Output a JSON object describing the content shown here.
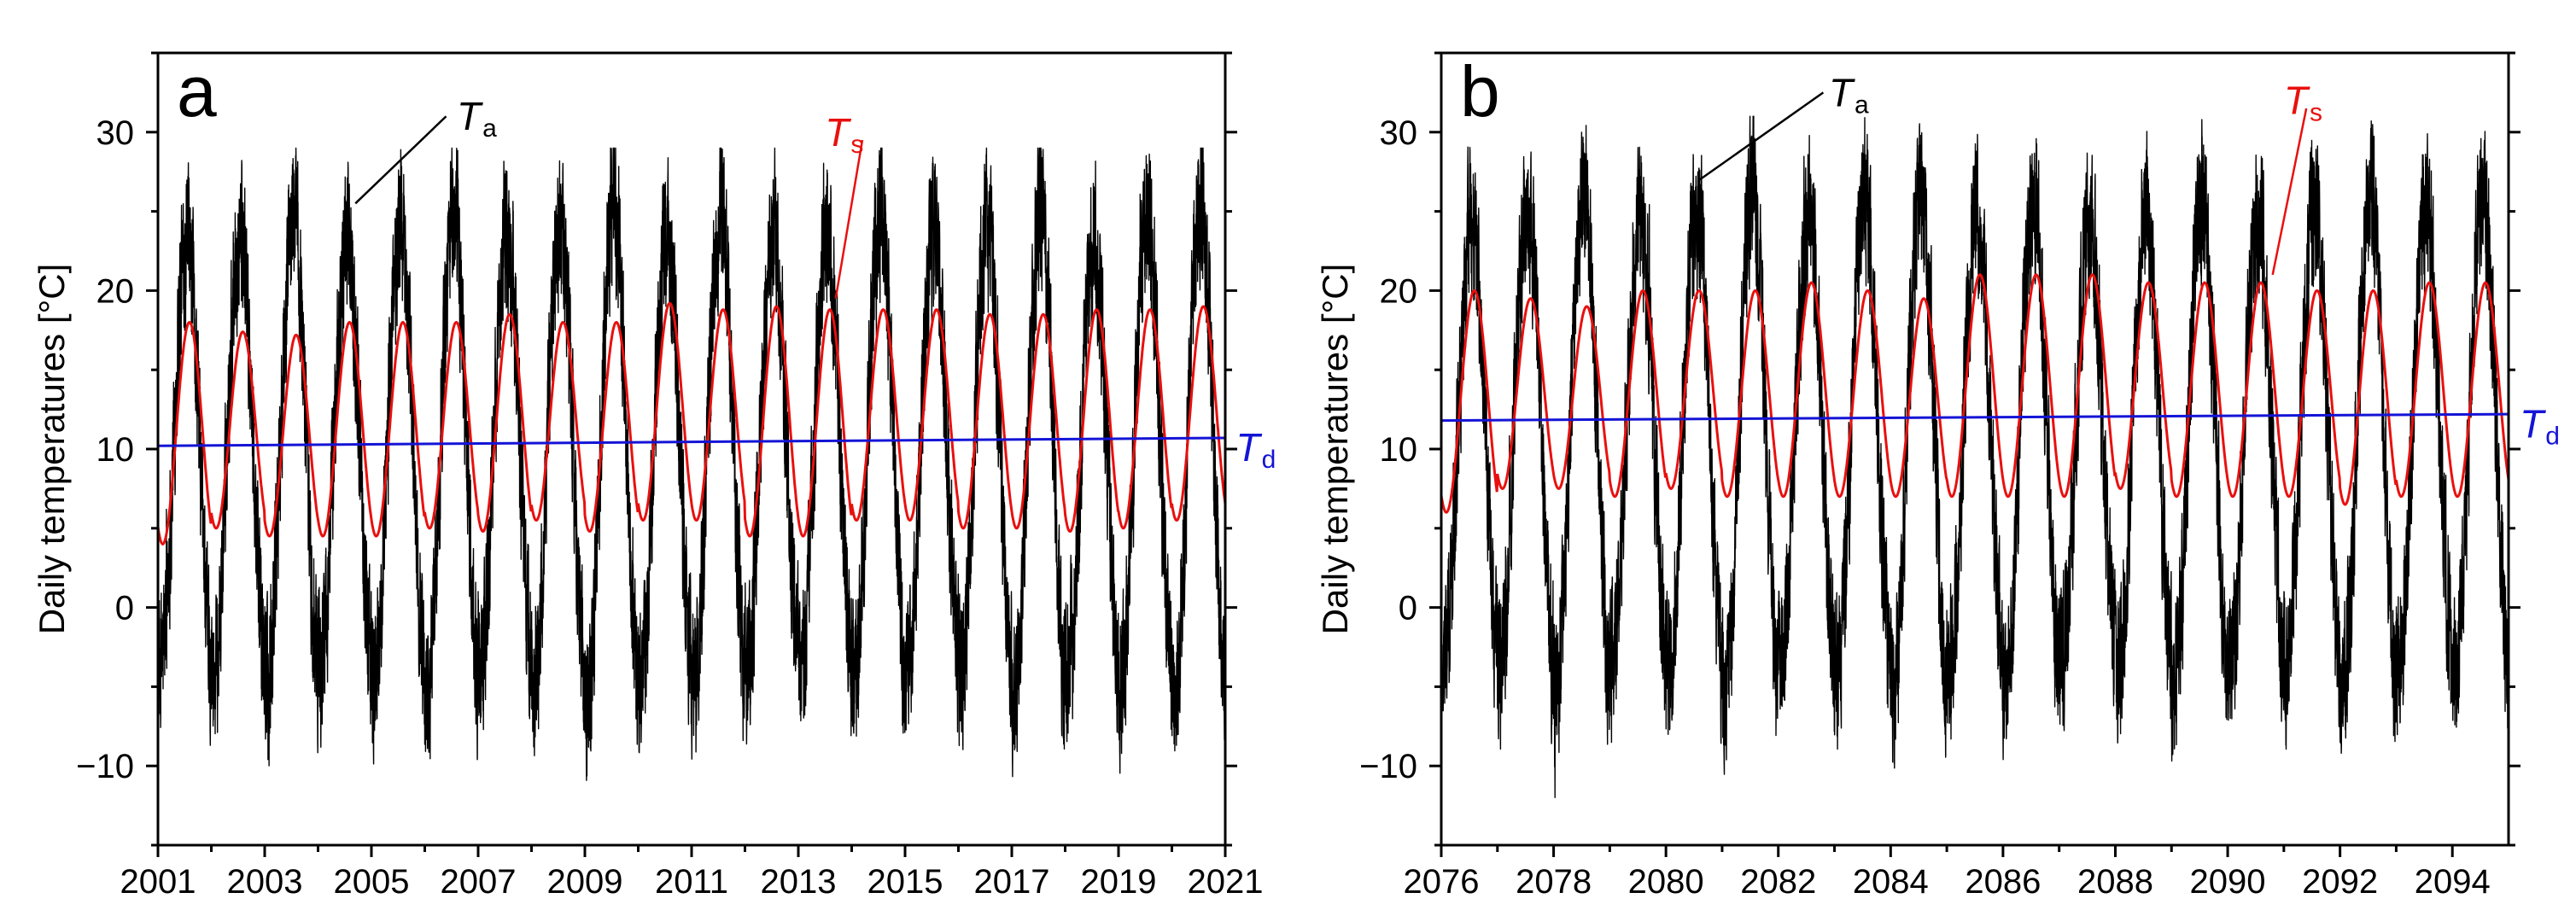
{
  "colors": {
    "Ta": "#000000",
    "Ts": "#e8100e",
    "Td": "#1414d6"
  },
  "chart_data": [
    {
      "type": "line",
      "panel_label": "a",
      "ylabel": "Daily temperatures [°C]",
      "xlim": [
        2001,
        2021
      ],
      "ylim": [
        -15,
        35
      ],
      "xticks": [
        "2001",
        "2003",
        "2005",
        "2007",
        "2009",
        "2011",
        "2013",
        "2015",
        "2017",
        "2019",
        "2021"
      ],
      "yticks": [
        "-10",
        "0",
        "10",
        "20",
        "30"
      ],
      "series": [
        {
          "name": "Ta",
          "kind": "daily air temperature (noisy seasonal)",
          "mean": 9.8,
          "amplitude": 14.5,
          "approx_max": 29,
          "approx_min": -11
        },
        {
          "name": "Ts",
          "kind": "seasonal sinusoid",
          "mean": 11.5,
          "amplitude": 6.8,
          "peaks": [
            18,
            17.4,
            17.2,
            18,
            18,
            18,
            18.5,
            18,
            18,
            19.2,
            18.8,
            19,
            18.8,
            18.8,
            18.8,
            18.5,
            18.5,
            18.8,
            18.8,
            19
          ],
          "troughs": [
            4,
            5,
            4.5,
            4.5,
            4.5,
            5,
            4.8,
            5.5,
            4.8,
            5.5,
            5.5,
            4.5,
            4.5,
            5.5,
            5.5,
            5,
            5,
            4.8,
            5,
            5.5
          ]
        },
        {
          "name": "Td",
          "kind": "nearly constant",
          "values": [
            10.2,
            10.7
          ]
        }
      ],
      "annotations": [
        {
          "main": "T",
          "sub": "a",
          "color": "Ta"
        },
        {
          "main": "T",
          "sub": "s",
          "color": "Ts"
        },
        {
          "main": "T",
          "sub": "d",
          "color": "Td"
        }
      ]
    },
    {
      "type": "line",
      "panel_label": "b",
      "ylabel": "Daily temperatures [°C]",
      "xlim": [
        2076,
        2095
      ],
      "ylim": [
        -15,
        35
      ],
      "xticks": [
        "2076",
        "2078",
        "2080",
        "2082",
        "2084",
        "2086",
        "2088",
        "2090",
        "2092",
        "2094"
      ],
      "yticks": [
        "-10",
        "0",
        "10",
        "20",
        "30"
      ],
      "series": [
        {
          "name": "Ta",
          "kind": "daily air temperature (noisy seasonal)",
          "mean": 10.5,
          "amplitude": 15,
          "approx_max": 31,
          "approx_min": -12
        },
        {
          "name": "Ts",
          "kind": "seasonal sinusoid",
          "mean": 13.5,
          "amplitude": 6.8,
          "peaks": [
            20,
            19.5,
            19,
            20,
            20,
            20,
            20.5,
            20,
            19.5,
            21,
            21,
            21,
            20.5,
            20.5,
            20.5,
            20,
            20,
            20.5,
            20.5
          ],
          "troughs": [
            6,
            7.5,
            7.5,
            7,
            7.5,
            7,
            7,
            7,
            7,
            7,
            7,
            7,
            7.5,
            7,
            7,
            7,
            6.5,
            7,
            7
          ]
        },
        {
          "name": "Td",
          "kind": "nearly constant",
          "values": [
            11.8,
            12.2
          ]
        }
      ],
      "annotations": [
        {
          "main": "T",
          "sub": "a",
          "color": "Ta"
        },
        {
          "main": "T",
          "sub": "s",
          "color": "Ts"
        },
        {
          "main": "T",
          "sub": "d",
          "color": "Td"
        }
      ]
    }
  ]
}
